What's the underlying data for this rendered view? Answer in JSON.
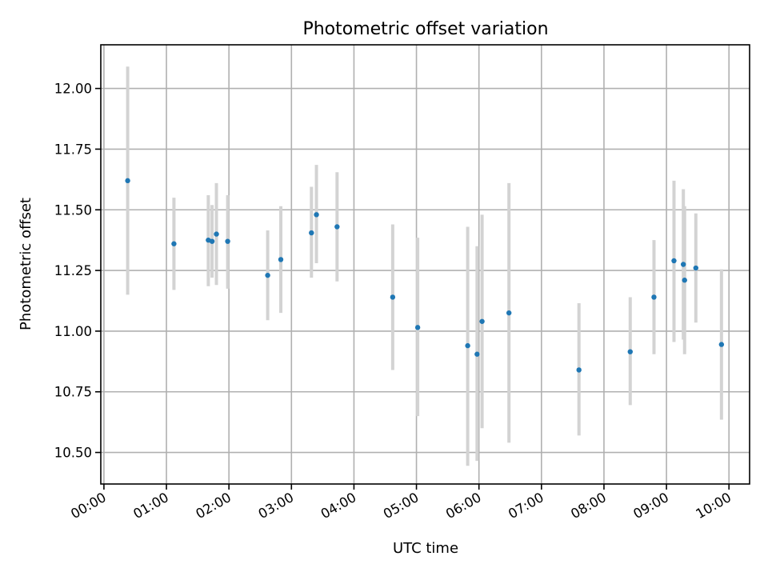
{
  "chart_data": {
    "type": "scatter",
    "title": "Photometric offset variation",
    "xlabel": "UTC time",
    "ylabel": "Photometric offset",
    "xlim": [
      "-0.05",
      "10.33"
    ],
    "xlim_hours": [
      -0.05,
      10.33
    ],
    "ylim": [
      10.37,
      12.18
    ],
    "x_ticks": [
      {
        "hour": 0,
        "label": "00:00"
      },
      {
        "hour": 1,
        "label": "01:00"
      },
      {
        "hour": 2,
        "label": "02:00"
      },
      {
        "hour": 3,
        "label": "03:00"
      },
      {
        "hour": 4,
        "label": "04:00"
      },
      {
        "hour": 5,
        "label": "05:00"
      },
      {
        "hour": 6,
        "label": "06:00"
      },
      {
        "hour": 7,
        "label": "07:00"
      },
      {
        "hour": 8,
        "label": "08:00"
      },
      {
        "hour": 9,
        "label": "09:00"
      },
      {
        "hour": 10,
        "label": "10:00"
      }
    ],
    "y_ticks": [
      {
        "value": 10.5,
        "label": "10.50"
      },
      {
        "value": 10.75,
        "label": "10.75"
      },
      {
        "value": 11.0,
        "label": "11.00"
      },
      {
        "value": 11.25,
        "label": "11.25"
      },
      {
        "value": 11.5,
        "label": "11.50"
      },
      {
        "value": 11.75,
        "label": "11.75"
      },
      {
        "value": 12.0,
        "label": "12.00"
      }
    ],
    "grid": true,
    "series": [
      {
        "marker_color": "#1f77b4",
        "errorbar_color": "#d3d3d3",
        "points": [
          {
            "time": "00:23",
            "hour": 0.38,
            "y": 11.62,
            "yerr_low": 11.15,
            "yerr_high": 12.09
          },
          {
            "time": "01:07",
            "hour": 1.12,
            "y": 11.36,
            "yerr_low": 11.17,
            "yerr_high": 11.55
          },
          {
            "time": "01:40",
            "hour": 1.67,
            "y": 11.375,
            "yerr_low": 11.185,
            "yerr_high": 11.56
          },
          {
            "time": "01:44",
            "hour": 1.73,
            "y": 11.37,
            "yerr_low": 11.22,
            "yerr_high": 11.52
          },
          {
            "time": "01:48",
            "hour": 1.8,
            "y": 11.4,
            "yerr_low": 11.19,
            "yerr_high": 11.61
          },
          {
            "time": "01:59",
            "hour": 1.98,
            "y": 11.37,
            "yerr_low": 11.175,
            "yerr_high": 11.56
          },
          {
            "time": "02:37",
            "hour": 2.62,
            "y": 11.23,
            "yerr_low": 11.045,
            "yerr_high": 11.415
          },
          {
            "time": "02:50",
            "hour": 2.83,
            "y": 11.295,
            "yerr_low": 11.075,
            "yerr_high": 11.515
          },
          {
            "time": "03:19",
            "hour": 3.32,
            "y": 11.405,
            "yerr_low": 11.22,
            "yerr_high": 11.595
          },
          {
            "time": "03:24",
            "hour": 3.4,
            "y": 11.48,
            "yerr_low": 11.28,
            "yerr_high": 11.685
          },
          {
            "time": "03:44",
            "hour": 3.73,
            "y": 11.43,
            "yerr_low": 11.205,
            "yerr_high": 11.655
          },
          {
            "time": "04:37",
            "hour": 4.62,
            "y": 11.14,
            "yerr_low": 10.84,
            "yerr_high": 11.44
          },
          {
            "time": "05:01",
            "hour": 5.02,
            "y": 11.015,
            "yerr_low": 10.65,
            "yerr_high": 11.385
          },
          {
            "time": "05:49",
            "hour": 5.82,
            "y": 10.94,
            "yerr_low": 10.445,
            "yerr_high": 11.43
          },
          {
            "time": "05:58",
            "hour": 5.97,
            "y": 10.905,
            "yerr_low": 10.465,
            "yerr_high": 11.35
          },
          {
            "time": "06:03",
            "hour": 6.05,
            "y": 11.04,
            "yerr_low": 10.6,
            "yerr_high": 11.48
          },
          {
            "time": "06:29",
            "hour": 6.48,
            "y": 11.075,
            "yerr_low": 10.54,
            "yerr_high": 11.61
          },
          {
            "time": "07:36",
            "hour": 7.6,
            "y": 10.84,
            "yerr_low": 10.57,
            "yerr_high": 11.115
          },
          {
            "time": "08:25",
            "hour": 8.42,
            "y": 10.915,
            "yerr_low": 10.695,
            "yerr_high": 11.14
          },
          {
            "time": "08:48",
            "hour": 8.8,
            "y": 11.14,
            "yerr_low": 10.905,
            "yerr_high": 11.375
          },
          {
            "time": "09:07",
            "hour": 9.12,
            "y": 11.29,
            "yerr_low": 10.955,
            "yerr_high": 11.62
          },
          {
            "time": "09:16",
            "hour": 9.27,
            "y": 11.275,
            "yerr_low": 10.965,
            "yerr_high": 11.585
          },
          {
            "time": "09:17",
            "hour": 9.29,
            "y": 11.21,
            "yerr_low": 10.905,
            "yerr_high": 11.515
          },
          {
            "time": "09:28",
            "hour": 9.47,
            "y": 11.26,
            "yerr_low": 11.035,
            "yerr_high": 11.485
          },
          {
            "time": "09:53",
            "hour": 9.88,
            "y": 10.945,
            "yerr_low": 10.635,
            "yerr_high": 11.255
          }
        ]
      }
    ]
  }
}
